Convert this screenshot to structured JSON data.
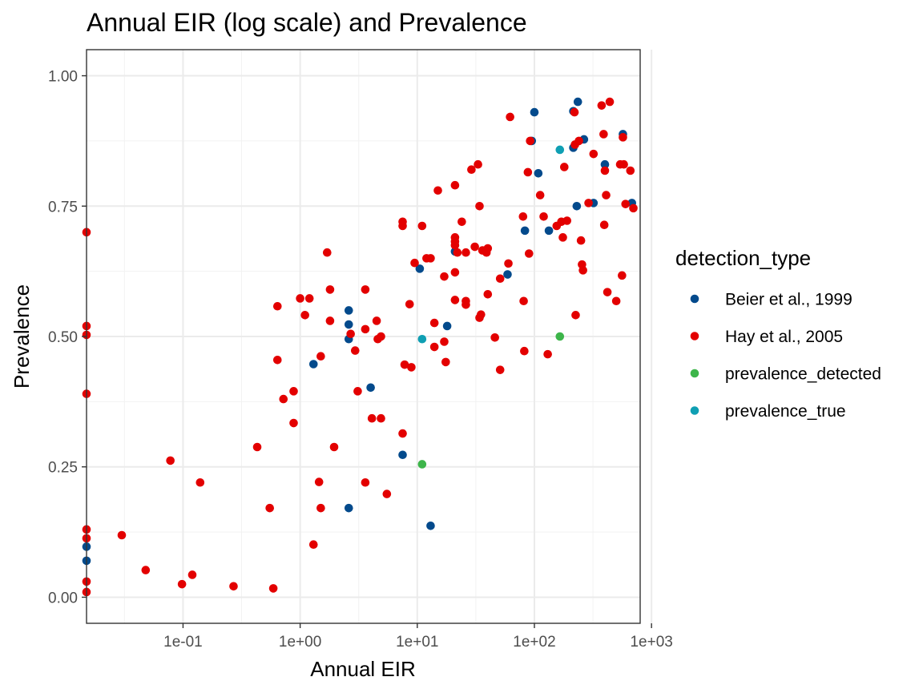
{
  "chart_data": {
    "type": "scatter",
    "title": "Annual EIR (log scale) and Prevalence",
    "xlabel": "Annual EIR",
    "ylabel": "Prevalence",
    "x_scale": "log10",
    "xlim": [
      0.015,
      800
    ],
    "ylim": [
      -0.05,
      1.05
    ],
    "x_ticks": [
      {
        "value": 0.1,
        "label": "1e-01"
      },
      {
        "value": 1,
        "label": "1e+00"
      },
      {
        "value": 10,
        "label": "1e+01"
      },
      {
        "value": 100,
        "label": "1e+02"
      },
      {
        "value": 1000,
        "label": "1e+03"
      }
    ],
    "y_ticks": [
      {
        "value": 0,
        "label": "0.00"
      },
      {
        "value": 0.25,
        "label": "0.25"
      },
      {
        "value": 0.5,
        "label": "0.50"
      },
      {
        "value": 0.75,
        "label": "0.75"
      },
      {
        "value": 1,
        "label": "1.00"
      }
    ],
    "grid": true,
    "legend": {
      "title": "detection_type",
      "position": "right"
    },
    "series": [
      {
        "name": "Beier et al., 1999",
        "color": "#034a8c",
        "points": [
          [
            0.015,
            0.097
          ],
          [
            0.015,
            0.07
          ],
          [
            1.3,
            0.447
          ],
          [
            2.6,
            0.55
          ],
          [
            2.6,
            0.523
          ],
          [
            2.6,
            0.495
          ],
          [
            2.6,
            0.171
          ],
          [
            4.0,
            0.402
          ],
          [
            7.5,
            0.273
          ],
          [
            10.5,
            0.63
          ],
          [
            13,
            0.137
          ],
          [
            18,
            0.52
          ],
          [
            21,
            0.663
          ],
          [
            59,
            0.619
          ],
          [
            83,
            0.703
          ],
          [
            95,
            0.875
          ],
          [
            100,
            0.93
          ],
          [
            108,
            0.813
          ],
          [
            133,
            0.703
          ],
          [
            215,
            0.862
          ],
          [
            215,
            0.932
          ],
          [
            230,
            0.75
          ],
          [
            235,
            0.95
          ],
          [
            265,
            0.878
          ],
          [
            320,
            0.756
          ],
          [
            400,
            0.83
          ],
          [
            570,
            0.888
          ],
          [
            680,
            0.756
          ]
        ]
      },
      {
        "name": "Hay et al., 2005",
        "color": "#e30000",
        "points": [
          [
            0.015,
            0.7
          ],
          [
            0.015,
            0.52
          ],
          [
            0.015,
            0.503
          ],
          [
            0.015,
            0.39
          ],
          [
            0.015,
            0.13
          ],
          [
            0.015,
            0.113
          ],
          [
            0.015,
            0.03
          ],
          [
            0.015,
            0.01
          ],
          [
            0.03,
            0.119
          ],
          [
            0.048,
            0.052
          ],
          [
            0.078,
            0.262
          ],
          [
            0.098,
            0.025
          ],
          [
            0.12,
            0.043
          ],
          [
            0.14,
            0.22
          ],
          [
            0.27,
            0.021
          ],
          [
            0.43,
            0.288
          ],
          [
            0.55,
            0.171
          ],
          [
            0.59,
            0.017
          ],
          [
            0.64,
            0.558
          ],
          [
            0.64,
            0.455
          ],
          [
            0.72,
            0.38
          ],
          [
            0.88,
            0.395
          ],
          [
            0.88,
            0.334
          ],
          [
            1.0,
            0.573
          ],
          [
            1.1,
            0.541
          ],
          [
            1.2,
            0.573
          ],
          [
            1.3,
            0.101
          ],
          [
            1.45,
            0.221
          ],
          [
            1.5,
            0.462
          ],
          [
            1.5,
            0.171
          ],
          [
            1.7,
            0.661
          ],
          [
            1.8,
            0.59
          ],
          [
            1.8,
            0.53
          ],
          [
            1.95,
            0.288
          ],
          [
            2.7,
            0.505
          ],
          [
            2.95,
            0.473
          ],
          [
            3.1,
            0.395
          ],
          [
            3.6,
            0.59
          ],
          [
            3.6,
            0.514
          ],
          [
            3.6,
            0.22
          ],
          [
            4.1,
            0.343
          ],
          [
            4.5,
            0.53
          ],
          [
            4.6,
            0.495
          ],
          [
            4.9,
            0.343
          ],
          [
            4.9,
            0.5
          ],
          [
            5.5,
            0.198
          ],
          [
            7.5,
            0.72
          ],
          [
            7.5,
            0.712
          ],
          [
            7.5,
            0.314
          ],
          [
            7.8,
            0.446
          ],
          [
            8.6,
            0.562
          ],
          [
            8.9,
            0.441
          ],
          [
            9.5,
            0.641
          ],
          [
            11,
            0.712
          ],
          [
            12,
            0.65
          ],
          [
            13,
            0.65
          ],
          [
            14,
            0.526
          ],
          [
            14,
            0.48
          ],
          [
            15,
            0.78
          ],
          [
            17,
            0.49
          ],
          [
            17,
            0.615
          ],
          [
            17.5,
            0.451
          ],
          [
            21,
            0.79
          ],
          [
            21,
            0.69
          ],
          [
            21,
            0.682
          ],
          [
            21,
            0.675
          ],
          [
            21,
            0.623
          ],
          [
            21,
            0.57
          ],
          [
            22,
            0.661
          ],
          [
            24,
            0.72
          ],
          [
            26,
            0.661
          ],
          [
            26,
            0.568
          ],
          [
            26,
            0.561
          ],
          [
            29,
            0.82
          ],
          [
            31,
            0.672
          ],
          [
            33,
            0.83
          ],
          [
            34,
            0.75
          ],
          [
            34,
            0.536
          ],
          [
            35,
            0.542
          ],
          [
            36,
            0.665
          ],
          [
            39,
            0.661
          ],
          [
            40,
            0.669
          ],
          [
            40,
            0.581
          ],
          [
            46,
            0.498
          ],
          [
            51,
            0.611
          ],
          [
            51,
            0.436
          ],
          [
            60,
            0.64
          ],
          [
            62,
            0.921
          ],
          [
            80,
            0.73
          ],
          [
            81,
            0.568
          ],
          [
            82,
            0.472
          ],
          [
            88,
            0.815
          ],
          [
            90,
            0.659
          ],
          [
            92,
            0.875
          ],
          [
            112,
            0.771
          ],
          [
            120,
            0.73
          ],
          [
            130,
            0.466
          ],
          [
            155,
            0.712
          ],
          [
            170,
            0.72
          ],
          [
            175,
            0.69
          ],
          [
            180,
            0.825
          ],
          [
            190,
            0.722
          ],
          [
            220,
            0.93
          ],
          [
            222,
            0.868
          ],
          [
            225,
            0.541
          ],
          [
            240,
            0.875
          ],
          [
            250,
            0.684
          ],
          [
            255,
            0.638
          ],
          [
            260,
            0.627
          ],
          [
            290,
            0.756
          ],
          [
            320,
            0.85
          ],
          [
            375,
            0.943
          ],
          [
            390,
            0.888
          ],
          [
            395,
            0.714
          ],
          [
            400,
            0.818
          ],
          [
            410,
            0.771
          ],
          [
            420,
            0.585
          ],
          [
            440,
            0.95
          ],
          [
            500,
            0.568
          ],
          [
            540,
            0.83
          ],
          [
            560,
            0.617
          ],
          [
            570,
            0.882
          ],
          [
            580,
            0.83
          ],
          [
            600,
            0.754
          ],
          [
            660,
            0.818
          ],
          [
            700,
            0.746
          ]
        ]
      },
      {
        "name": "prevalence_detected",
        "color": "#3db54a",
        "points": [
          [
            11,
            0.255
          ],
          [
            165,
            0.5
          ]
        ]
      },
      {
        "name": "prevalence_true",
        "color": "#0f9fb3",
        "points": [
          [
            11,
            0.495
          ],
          [
            165,
            0.858
          ]
        ]
      }
    ]
  }
}
